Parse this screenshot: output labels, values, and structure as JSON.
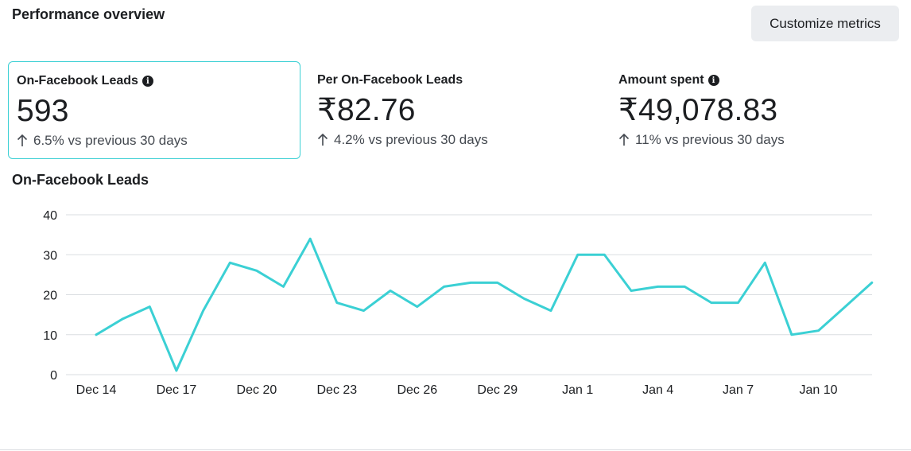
{
  "header": {
    "title": "Performance overview",
    "customize_label": "Customize metrics"
  },
  "metrics": [
    {
      "label": "On-Facebook Leads",
      "value": "593",
      "delta": "6.5% vs previous 30 days",
      "has_info": true,
      "selected": true
    },
    {
      "label": "Per On-Facebook Leads",
      "value": "₹82.76",
      "delta": "4.2% vs previous 30 days",
      "has_info": false,
      "selected": false
    },
    {
      "label": "Amount spent",
      "value": "₹49,078.83",
      "delta": "11% vs previous 30 days",
      "has_info": true,
      "selected": false
    }
  ],
  "icons": {
    "info": "info-icon",
    "delta": "arrow-up-icon"
  },
  "chart_title": "On-Facebook Leads",
  "colors": {
    "accent": "#3bd0d4",
    "grid": "#dadde1",
    "button_bg": "#ebedf0",
    "text": "#1c1e21"
  },
  "chart_data": {
    "type": "line",
    "title": "On-Facebook Leads",
    "xlabel": "",
    "ylabel": "",
    "ylim": [
      0,
      40
    ],
    "yticks": [
      0,
      10,
      20,
      30,
      40
    ],
    "x": [
      "Dec 14",
      "Dec 15",
      "Dec 16",
      "Dec 17",
      "Dec 18",
      "Dec 19",
      "Dec 20",
      "Dec 21",
      "Dec 22",
      "Dec 23",
      "Dec 24",
      "Dec 25",
      "Dec 26",
      "Dec 27",
      "Dec 28",
      "Dec 29",
      "Dec 30",
      "Dec 31",
      "Jan 1",
      "Jan 2",
      "Jan 3",
      "Jan 4",
      "Jan 5",
      "Jan 6",
      "Jan 7",
      "Jan 8",
      "Jan 9",
      "Jan 10",
      "Jan 11",
      "Jan 12"
    ],
    "xtick_labels": [
      "Dec 14",
      "Dec 17",
      "Dec 20",
      "Dec 23",
      "Dec 26",
      "Dec 29",
      "Jan 1",
      "Jan 4",
      "Jan 7",
      "Jan 10"
    ],
    "series": [
      {
        "values": [
          10,
          14,
          17,
          1,
          16,
          28,
          26,
          22,
          34,
          18,
          16,
          21,
          17,
          22,
          23,
          23,
          19,
          16,
          30,
          30,
          21,
          22,
          22,
          18,
          18,
          28,
          10,
          11,
          17,
          23
        ]
      }
    ],
    "grid": true,
    "legend": "none"
  }
}
